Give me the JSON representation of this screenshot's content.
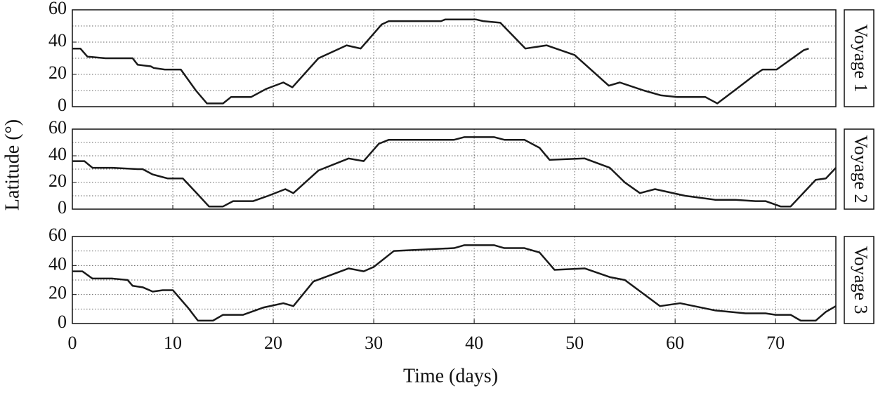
{
  "chart_data": [
    {
      "type": "line",
      "title": "Voyage 1",
      "x": [
        0,
        0.8,
        1.5,
        3.3,
        6,
        6.5,
        7.8,
        8.1,
        9.2,
        10.8,
        12.3,
        13.4,
        15,
        15.8,
        17.8,
        19.3,
        21,
        21.9,
        24.5,
        27.3,
        28.7,
        30.8,
        31.5,
        36.7,
        37.1,
        40.2,
        40.9,
        42.6,
        45.1,
        47.2,
        50,
        53.4,
        54.5,
        56.9,
        58.6,
        60.2,
        61.8,
        63,
        64.2,
        65.9,
        68,
        68.7,
        70.1,
        72.8,
        73.3
      ],
      "series": [
        {
          "color": "#1a1a1a",
          "values": [
            36,
            36,
            31,
            30,
            30,
            26,
            25,
            24,
            23,
            23,
            10,
            2,
            2,
            6,
            6,
            11,
            15,
            12,
            30,
            38,
            36,
            51,
            53,
            53,
            54,
            54,
            53,
            52,
            36,
            38,
            32,
            13,
            15,
            10,
            7,
            6,
            6,
            6,
            2,
            10,
            20,
            23,
            23,
            35,
            36
          ]
        }
      ],
      "xlim": [
        0,
        76
      ],
      "xticks": [
        0,
        10,
        20,
        30,
        40,
        50,
        60,
        70
      ],
      "show_xtick_labels": false,
      "ylim": [
        0,
        60
      ],
      "yticks": [
        0,
        20,
        40,
        60
      ],
      "y_minor_grid": [
        10,
        30,
        50
      ],
      "grid": true
    },
    {
      "type": "line",
      "title": "Voyage 2",
      "ylabel": "Latitude (°)",
      "x": [
        0,
        1.2,
        2,
        4,
        6.5,
        7,
        8,
        8.5,
        9.5,
        11,
        12.5,
        13.6,
        15,
        16,
        18,
        19.5,
        21.2,
        22,
        24.5,
        27.5,
        29,
        30.5,
        31.5,
        38,
        39,
        42,
        43,
        45,
        46.5,
        47.5,
        51,
        53.5,
        55,
        56.5,
        58,
        61,
        64,
        66,
        68,
        69,
        70.5,
        71.5,
        74,
        75,
        76
      ],
      "series": [
        {
          "color": "#1a1a1a",
          "values": [
            36,
            36,
            31,
            31,
            30,
            30,
            26,
            25,
            23,
            23,
            11,
            2,
            2,
            6,
            6,
            10,
            15,
            12,
            29,
            38,
            36,
            49,
            52,
            52,
            54,
            54,
            52,
            52,
            46,
            37,
            38,
            31,
            20,
            12,
            15,
            10,
            7,
            7,
            6,
            6,
            2,
            2,
            22,
            23,
            31
          ]
        }
      ],
      "xlim": [
        0,
        76
      ],
      "xticks": [
        0,
        10,
        20,
        30,
        40,
        50,
        60,
        70
      ],
      "show_xtick_labels": false,
      "ylim": [
        0,
        60
      ],
      "yticks": [
        0,
        20,
        40,
        60
      ],
      "y_minor_grid": [
        10,
        30,
        50
      ],
      "grid": true
    },
    {
      "type": "line",
      "title": "Voyage 3",
      "xlabel": "Time (days)",
      "x": [
        0,
        1,
        2,
        4,
        5.5,
        6,
        7,
        8,
        9,
        10,
        11.5,
        12.5,
        14,
        15,
        17,
        19,
        21,
        22,
        24,
        27.5,
        29,
        30,
        32,
        38,
        39,
        42,
        43,
        45,
        46.5,
        48,
        51,
        53.5,
        55,
        58.5,
        60.5,
        64,
        67,
        69,
        70,
        71.5,
        72.5,
        74,
        75,
        76
      ],
      "series": [
        {
          "color": "#1a1a1a",
          "values": [
            36,
            36,
            31,
            31,
            30,
            26,
            25,
            22,
            23,
            23,
            11,
            2,
            2,
            6,
            6,
            11,
            14,
            12,
            29,
            38,
            36,
            39,
            50,
            52,
            54,
            54,
            52,
            52,
            49,
            37,
            38,
            32,
            30,
            12,
            14,
            9,
            7,
            7,
            6,
            6,
            2,
            2,
            8,
            12
          ]
        }
      ],
      "xlim": [
        0,
        76
      ],
      "xticks": [
        0,
        10,
        20,
        30,
        40,
        50,
        60,
        70
      ],
      "show_xtick_labels": true,
      "ylim": [
        0,
        60
      ],
      "yticks": [
        0,
        20,
        40,
        60
      ],
      "y_minor_grid": [
        10,
        30,
        50
      ],
      "grid": true
    }
  ]
}
